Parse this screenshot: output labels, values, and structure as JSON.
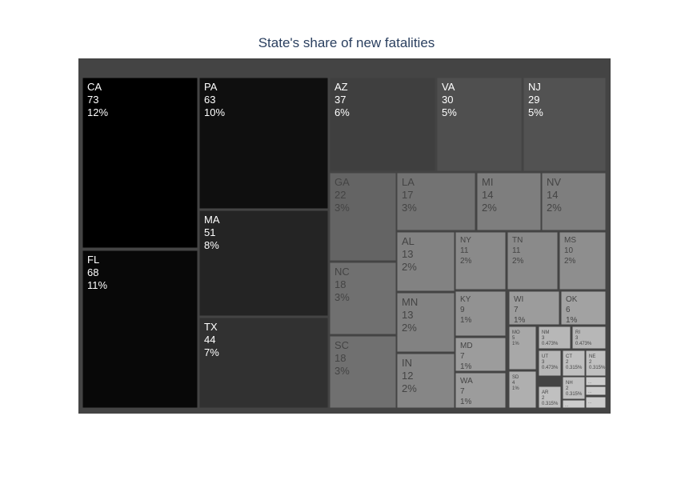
{
  "chart_data": {
    "type": "treemap",
    "title": "State's share of new fatalities",
    "root_label": "",
    "tiles": [
      {
        "label": "CA",
        "value": 73,
        "percent": "12%"
      },
      {
        "label": "FL",
        "value": 68,
        "percent": "11%"
      },
      {
        "label": "PA",
        "value": 63,
        "percent": "10%"
      },
      {
        "label": "MA",
        "value": 51,
        "percent": "8%"
      },
      {
        "label": "TX",
        "value": 44,
        "percent": "7%"
      },
      {
        "label": "AZ",
        "value": 37,
        "percent": "6%"
      },
      {
        "label": "VA",
        "value": 30,
        "percent": "5%"
      },
      {
        "label": "NJ",
        "value": 29,
        "percent": "5%"
      },
      {
        "label": "GA",
        "value": 22,
        "percent": "3%"
      },
      {
        "label": "NC",
        "value": 18,
        "percent": "3%"
      },
      {
        "label": "SC",
        "value": 18,
        "percent": "3%"
      },
      {
        "label": "LA",
        "value": 17,
        "percent": "3%"
      },
      {
        "label": "MI",
        "value": 14,
        "percent": "2%"
      },
      {
        "label": "NV",
        "value": 14,
        "percent": "2%"
      },
      {
        "label": "AL",
        "value": 13,
        "percent": "2%"
      },
      {
        "label": "MN",
        "value": 13,
        "percent": "2%"
      },
      {
        "label": "IN",
        "value": 12,
        "percent": "2%"
      },
      {
        "label": "NY",
        "value": 11,
        "percent": "2%"
      },
      {
        "label": "TN",
        "value": 11,
        "percent": "2%"
      },
      {
        "label": "MS",
        "value": 10,
        "percent": "2%"
      },
      {
        "label": "KY",
        "value": 9,
        "percent": "1%"
      },
      {
        "label": "MD",
        "value": 7,
        "percent": "1%"
      },
      {
        "label": "WA",
        "value": 7,
        "percent": "1%"
      },
      {
        "label": "WI",
        "value": 7,
        "percent": "1%"
      },
      {
        "label": "OK",
        "value": 6,
        "percent": "1%"
      },
      {
        "label": "MO",
        "value": 5,
        "percent": "1%"
      },
      {
        "label": "SD",
        "value": 4,
        "percent": "1%"
      },
      {
        "label": "NM",
        "value": 3,
        "percent": "0.473%"
      },
      {
        "label": "RI",
        "value": 3,
        "percent": "0.473%"
      },
      {
        "label": "UT",
        "value": 3,
        "percent": "0.473%"
      },
      {
        "label": "CT",
        "value": 2,
        "percent": "0.315%"
      },
      {
        "label": "NE",
        "value": 2,
        "percent": "0.315%"
      },
      {
        "label": "AR",
        "value": 2,
        "percent": "0.315%"
      },
      {
        "label": "NH",
        "value": 2,
        "percent": "0.315%"
      },
      {
        "label": "",
        "value": 1,
        "percent": ""
      },
      {
        "label": "",
        "value": 1,
        "percent": ""
      },
      {
        "label": "",
        "value": 1,
        "percent": ""
      },
      {
        "label": "",
        "value": 1,
        "percent": ""
      }
    ]
  },
  "colors": {
    "background": "#ffffff",
    "root_fill": "#444444",
    "border": "#444444",
    "title_color": "#2a3f5f",
    "colorscale_dark": "#000000",
    "colorscale_light": "#ffffff"
  }
}
